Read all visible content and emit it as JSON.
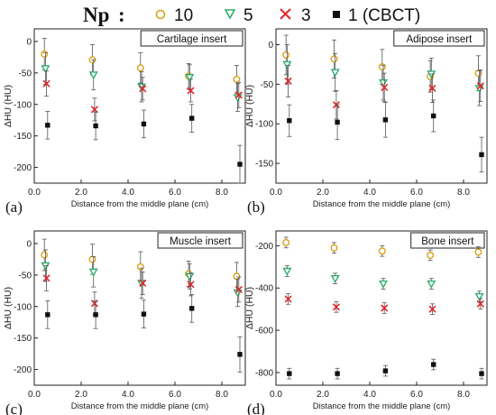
{
  "legend": {
    "prefix": "Np",
    "separator": ":",
    "entries": [
      {
        "label": "10",
        "color": "#D9A21B",
        "marker": "circle"
      },
      {
        "label": "5",
        "color": "#2EAE6E",
        "marker": "triangle-down"
      },
      {
        "label": "3",
        "color": "#E0262B",
        "marker": "x"
      },
      {
        "label": "1 (CBCT)",
        "color": "#111111",
        "marker": "square"
      }
    ]
  },
  "chart_data": [
    {
      "type": "scatter",
      "panel_label": "(a)",
      "title": "Cartilage insert",
      "xlabel": "Distance from the middle plane (cm)",
      "ylabel": "ΔHU (HU)",
      "xlim": [
        0,
        9
      ],
      "ylim": [
        -225,
        20
      ],
      "xticks": [
        "0.0",
        "2.0",
        "4.0",
        "6.0",
        "8.0"
      ],
      "yticks": [
        "0",
        "-50",
        "-100",
        "-150",
        "-200"
      ],
      "x": [
        0.5,
        2.55,
        4.6,
        6.65,
        8.7
      ],
      "series": [
        {
          "name": "10",
          "values": [
            -20,
            -29,
            -42,
            -55,
            -60
          ],
          "errors": [
            25,
            24,
            24,
            20,
            22
          ]
        },
        {
          "name": "5",
          "values": [
            -43,
            -53,
            -72,
            -57,
            -89
          ],
          "errors": [
            25,
            24,
            24,
            20,
            22
          ]
        },
        {
          "name": "3",
          "values": [
            -67,
            -108,
            -75,
            -78,
            -85
          ],
          "errors": [
            20,
            18,
            18,
            18,
            20
          ]
        },
        {
          "name": "1 (CBCT)",
          "values": [
            -133,
            -134,
            -131,
            -122,
            -195
          ],
          "errors": [
            22,
            22,
            22,
            22,
            30
          ]
        }
      ]
    },
    {
      "type": "scatter",
      "panel_label": "(b)",
      "title": "Adipose insert",
      "xlabel": "Distance from the middle plane (cm)",
      "ylabel": "ΔHU (HU)",
      "xlim": [
        0,
        9
      ],
      "ylim": [
        -175,
        20
      ],
      "xticks": [
        "0.0",
        "2.0",
        "4.0",
        "6.0",
        "8.0"
      ],
      "yticks": [
        "0",
        "-50",
        "-100",
        "-150"
      ],
      "x": [
        0.5,
        2.55,
        4.6,
        6.65,
        8.7
      ],
      "series": [
        {
          "name": "10",
          "values": [
            -13,
            -18,
            -28,
            -40,
            -36
          ],
          "errors": [
            25,
            24,
            22,
            20,
            22
          ]
        },
        {
          "name": "5",
          "values": [
            -25,
            -35,
            -48,
            -37,
            -55
          ],
          "errors": [
            25,
            24,
            22,
            20,
            22
          ]
        },
        {
          "name": "3",
          "values": [
            -46,
            -76,
            -54,
            -55,
            -52
          ],
          "errors": [
            20,
            18,
            18,
            18,
            20
          ]
        },
        {
          "name": "1 (CBCT)",
          "values": [
            -96,
            -98,
            -95,
            -90,
            -139
          ],
          "errors": [
            20,
            22,
            22,
            20,
            22
          ]
        }
      ]
    },
    {
      "type": "scatter",
      "panel_label": "(c)",
      "title": "Muscle insert",
      "xlabel": "Distance from the middle plane (cm)",
      "ylabel": "ΔHU (HU)",
      "xlim": [
        0,
        9
      ],
      "ylim": [
        -225,
        20
      ],
      "xticks": [
        "0.0",
        "2.0",
        "4.0",
        "6.0",
        "8.0"
      ],
      "yticks": [
        "0",
        "-50",
        "-100",
        "-150",
        "-200"
      ],
      "x": [
        0.5,
        2.55,
        4.6,
        6.65,
        8.7
      ],
      "series": [
        {
          "name": "10",
          "values": [
            -18,
            -25,
            -37,
            -48,
            -52
          ],
          "errors": [
            25,
            24,
            24,
            20,
            22
          ]
        },
        {
          "name": "5",
          "values": [
            -35,
            -45,
            -63,
            -52,
            -78
          ],
          "errors": [
            25,
            24,
            24,
            20,
            22
          ]
        },
        {
          "name": "3",
          "values": [
            -55,
            -95,
            -63,
            -65,
            -73
          ],
          "errors": [
            20,
            18,
            18,
            18,
            20
          ]
        },
        {
          "name": "1 (CBCT)",
          "values": [
            -113,
            -113,
            -112,
            -103,
            -176
          ],
          "errors": [
            22,
            22,
            22,
            22,
            28
          ]
        }
      ]
    },
    {
      "type": "scatter",
      "panel_label": "(d)",
      "title": "Bone insert",
      "xlabel": "Distance from the middle plane (cm)",
      "ylabel": "ΔHU (HU)",
      "xlim": [
        0,
        9
      ],
      "ylim": [
        -860,
        -130
      ],
      "xticks": [
        "0.0",
        "2.0",
        "4.0",
        "6.0",
        "8.0"
      ],
      "yticks": [
        "-200",
        "-400",
        "-600",
        "-800"
      ],
      "x": [
        0.5,
        2.55,
        4.6,
        6.65,
        8.7
      ],
      "series": [
        {
          "name": "10",
          "values": [
            -185,
            -210,
            -225,
            -245,
            -230
          ],
          "errors": [
            25,
            25,
            25,
            25,
            25
          ]
        },
        {
          "name": "5",
          "values": [
            -320,
            -355,
            -380,
            -380,
            -440
          ],
          "errors": [
            25,
            25,
            25,
            25,
            25
          ]
        },
        {
          "name": "3",
          "values": [
            -452,
            -490,
            -495,
            -500,
            -475
          ],
          "errors": [
            25,
            25,
            25,
            25,
            25
          ]
        },
        {
          "name": "1 (CBCT)",
          "values": [
            -805,
            -805,
            -792,
            -762,
            -805
          ],
          "errors": [
            25,
            25,
            25,
            25,
            25
          ]
        }
      ]
    }
  ]
}
